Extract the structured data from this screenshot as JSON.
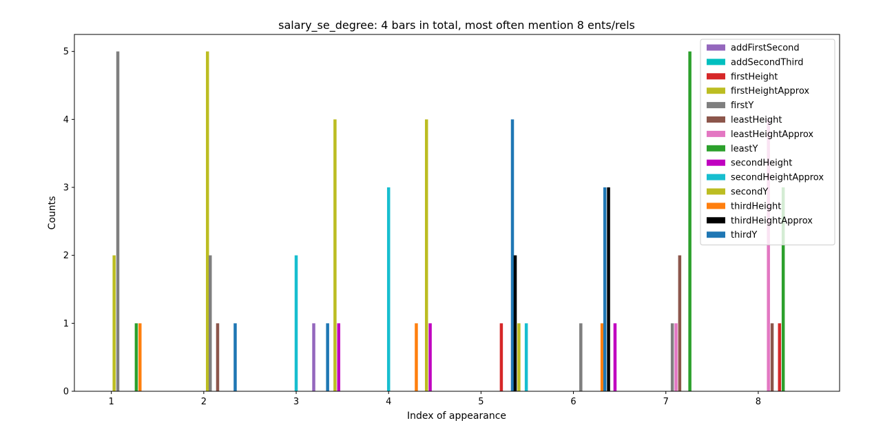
{
  "chart_data": {
    "type": "bar",
    "title": "salary_se_degree: 4 bars in total, most often mention  8 ents/rels",
    "xlabel": "Index of appearance",
    "ylabel": "Counts",
    "xticks": [
      "1",
      "2",
      "3",
      "4",
      "5",
      "6",
      "7",
      "8"
    ],
    "yticks": [
      "0",
      "1",
      "2",
      "3",
      "4",
      "5"
    ],
    "xlim": [
      0.6,
      8.88
    ],
    "ylim": [
      0,
      5.25
    ],
    "legend_position": "upper-right",
    "bars": [
      {
        "x": 1.03,
        "value": 2,
        "color": "#bcbd22"
      },
      {
        "x": 1.07,
        "value": 5,
        "color": "#7f7f7f"
      },
      {
        "x": 1.27,
        "value": 1,
        "color": "#2ca02c"
      },
      {
        "x": 1.31,
        "value": 1,
        "color": "#ff7f0e"
      },
      {
        "x": 2.04,
        "value": 5,
        "color": "#bcbd22"
      },
      {
        "x": 2.07,
        "value": 2,
        "color": "#7f7f7f"
      },
      {
        "x": 2.15,
        "value": 1,
        "color": "#8c564b"
      },
      {
        "x": 2.34,
        "value": 1,
        "color": "#1f77b4"
      },
      {
        "x": 3.0,
        "value": 2,
        "color": "#17becf"
      },
      {
        "x": 3.19,
        "value": 1,
        "color": "#9467bd"
      },
      {
        "x": 3.34,
        "value": 1,
        "color": "#1f77b4"
      },
      {
        "x": 3.42,
        "value": 4,
        "color": "#bcbd22"
      },
      {
        "x": 3.46,
        "value": 1,
        "color": "#c000c0"
      },
      {
        "x": 4.0,
        "value": 3,
        "color": "#17becf"
      },
      {
        "x": 4.3,
        "value": 1,
        "color": "#ff7f0e"
      },
      {
        "x": 4.41,
        "value": 4,
        "color": "#bcbd22"
      },
      {
        "x": 4.45,
        "value": 1,
        "color": "#c000c0"
      },
      {
        "x": 5.22,
        "value": 1,
        "color": "#d62728"
      },
      {
        "x": 5.34,
        "value": 4,
        "color": "#1f77b4"
      },
      {
        "x": 5.37,
        "value": 2,
        "color": "#000000"
      },
      {
        "x": 5.41,
        "value": 1,
        "color": "#bcbd22"
      },
      {
        "x": 5.49,
        "value": 1,
        "color": "#17becf"
      },
      {
        "x": 6.08,
        "value": 1,
        "color": "#7f7f7f"
      },
      {
        "x": 6.31,
        "value": 1,
        "color": "#ff7f0e"
      },
      {
        "x": 6.34,
        "value": 3,
        "color": "#1f77b4"
      },
      {
        "x": 6.38,
        "value": 3,
        "color": "#000000"
      },
      {
        "x": 6.45,
        "value": 1,
        "color": "#c000c0"
      },
      {
        "x": 7.07,
        "value": 1,
        "color": "#7f7f7f"
      },
      {
        "x": 7.11,
        "value": 1,
        "color": "#e377c2"
      },
      {
        "x": 7.15,
        "value": 2,
        "color": "#8c564b"
      },
      {
        "x": 7.26,
        "value": 5,
        "color": "#2ca02c"
      },
      {
        "x": 8.11,
        "value": 4,
        "color": "#e377c2"
      },
      {
        "x": 8.15,
        "value": 1,
        "color": "#8c564b"
      },
      {
        "x": 8.23,
        "value": 1,
        "color": "#d62728"
      },
      {
        "x": 8.27,
        "value": 3,
        "color": "#2ca02c"
      }
    ],
    "legend": [
      {
        "label": "addFirstSecond",
        "color": "#9467bd"
      },
      {
        "label": "addSecondThird",
        "color": "#00bfbf"
      },
      {
        "label": "firstHeight",
        "color": "#d62728"
      },
      {
        "label": "firstHeightApprox",
        "color": "#bcbd22"
      },
      {
        "label": "firstY",
        "color": "#7f7f7f"
      },
      {
        "label": "leastHeight",
        "color": "#8c564b"
      },
      {
        "label": "leastHeightApprox",
        "color": "#e377c2"
      },
      {
        "label": "leastY",
        "color": "#2ca02c"
      },
      {
        "label": "secondHeight",
        "color": "#c000c0"
      },
      {
        "label": "secondHeightApprox",
        "color": "#17becf"
      },
      {
        "label": "secondY",
        "color": "#bcbd22"
      },
      {
        "label": "thirdHeight",
        "color": "#ff7f0e"
      },
      {
        "label": "thirdHeightApprox",
        "color": "#000000"
      },
      {
        "label": "thirdY",
        "color": "#1f77b4"
      }
    ]
  }
}
